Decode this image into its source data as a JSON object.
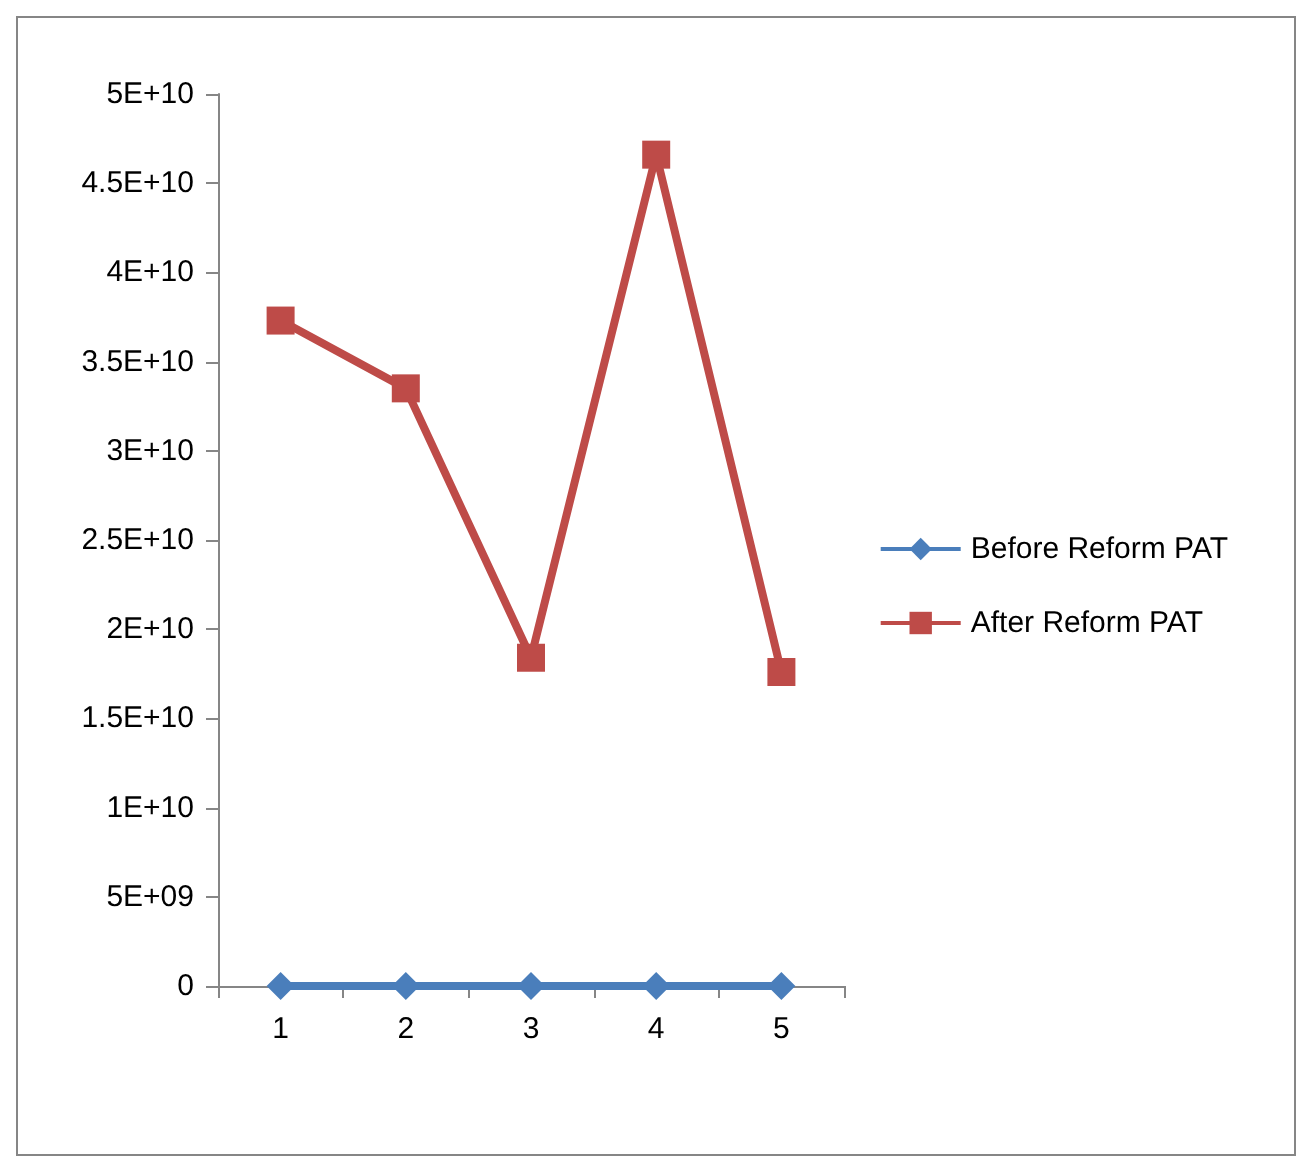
{
  "chart_data": {
    "type": "line",
    "categories": [
      "1",
      "2",
      "3",
      "4",
      "5"
    ],
    "series": [
      {
        "name": "Before Reform PAT",
        "color": "#4a7ebb",
        "marker": "diamond",
        "values": [
          0,
          0,
          0,
          0,
          0
        ]
      },
      {
        "name": "After Reform PAT",
        "color": "#be4b48",
        "marker": "square",
        "values": [
          37300000000.0,
          33500000000.0,
          18400000000.0,
          46600000000.0,
          17600000000.0
        ]
      }
    ],
    "ylim": [
      0,
      50000000000.0
    ],
    "yticks": [
      0,
      {
        "value": 5000000000.0,
        "label": "5E+09"
      },
      {
        "value": 10000000000.0,
        "label": "1E+10"
      },
      {
        "value": 15000000000.0,
        "label": "1.5E+10"
      },
      {
        "value": 20000000000.0,
        "label": "2E+10"
      },
      {
        "value": 25000000000.0,
        "label": "2.5E+10"
      },
      {
        "value": 30000000000.0,
        "label": "3E+10"
      },
      {
        "value": 35000000000.0,
        "label": "3.5E+10"
      },
      {
        "value": 40000000000.0,
        "label": "4E+10"
      },
      {
        "value": 45000000000.0,
        "label": "4.5E+10"
      },
      {
        "value": 50000000000.0,
        "label": "5E+10"
      }
    ],
    "grid": false,
    "legend": "right",
    "line_style": "solid"
  }
}
